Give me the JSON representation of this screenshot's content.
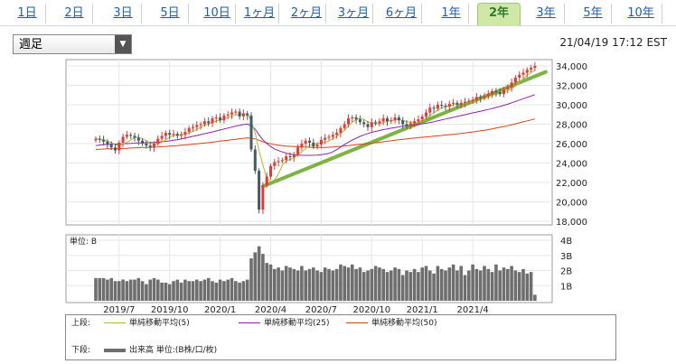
{
  "tabs": [
    {
      "label": "1日",
      "active": false
    },
    {
      "label": "2日",
      "active": false
    },
    {
      "label": "3日",
      "active": false
    },
    {
      "label": "5日",
      "active": false
    },
    {
      "label": "10日",
      "active": false
    },
    {
      "label": "1ヶ月",
      "active": false
    },
    {
      "label": "2ヶ月",
      "active": false
    },
    {
      "label": "3ヶ月",
      "active": false
    },
    {
      "label": "6ヶ月",
      "active": false
    },
    {
      "label": "1年",
      "active": false
    },
    {
      "label": "2年",
      "active": true
    },
    {
      "label": "3年",
      "active": false
    },
    {
      "label": "5年",
      "active": false
    },
    {
      "label": "10年",
      "active": false
    }
  ],
  "period_select": {
    "value": "週足"
  },
  "timestamp": "21/04/19 17:12 EST",
  "colors": {
    "up": "#e53935",
    "down": "#455a64",
    "ma5": "#a8bd32",
    "ma25": "#8e24aa",
    "ma50": "#d84315",
    "trend": "#7cb342",
    "volume": "#6e6e6e"
  },
  "legend": {
    "upper_label": "上段:",
    "lower_label": "下段:",
    "ma5": "単純移動平均(5)",
    "ma25": "単純移動平均(25)",
    "ma50": "単純移動平均(50)",
    "volume": "出来高 単位:(B株/口/枚)"
  },
  "chart_data": [
    {
      "type": "candlestick",
      "x_ticks": [
        "2019/7",
        "2019/10",
        "2020/1",
        "2020/4",
        "2020/7",
        "2020/10",
        "2021/1",
        "2021/4"
      ],
      "y_ticks": [
        "34,000",
        "32,000",
        "30,000",
        "28,000",
        "26,000",
        "24,000",
        "22,000",
        "20,000",
        "18,000"
      ],
      "ylim": [
        18000,
        34000
      ],
      "close": [
        26500,
        26400,
        26200,
        25900,
        25600,
        25300,
        26100,
        26700,
        26900,
        26800,
        26600,
        26300,
        26000,
        25800,
        25600,
        26000,
        26500,
        26800,
        27100,
        26900,
        27000,
        26800,
        26900,
        27200,
        27600,
        27700,
        27900,
        28000,
        28300,
        28100,
        28600,
        28700,
        28400,
        28900,
        29000,
        29200,
        29300,
        28800,
        29100,
        28900,
        25400,
        23200,
        19200,
        21700,
        22600,
        23700,
        24100,
        24200,
        24300,
        24700,
        24600,
        24900,
        25600,
        26000,
        26300,
        26100,
        25700,
        25900,
        26400,
        26600,
        26700,
        26900,
        27100,
        27600,
        28000,
        28600,
        28700,
        28500,
        28200,
        28000,
        27700,
        28200,
        28100,
        28300,
        28600,
        28300,
        28400,
        28700,
        28400,
        28000,
        27800,
        28100,
        28300,
        28500,
        28800,
        29200,
        29700,
        29600,
        30000,
        29900,
        29800,
        30100,
        30200,
        30000,
        30200,
        30300,
        30400,
        30500,
        30800,
        30700,
        30900,
        31100,
        31400,
        31300,
        31100,
        31600,
        31800,
        32300,
        32800,
        33100,
        33300,
        33600,
        33800,
        34000
      ],
      "ma5": [
        26500,
        26450,
        26370,
        26250,
        26120,
        25880,
        25820,
        25960,
        26120,
        26360,
        26620,
        26660,
        26520,
        26300,
        26060,
        25940,
        25980,
        26140,
        26400,
        26660,
        26860,
        26920,
        26940,
        26960,
        27100,
        27240,
        27460,
        27680,
        27900,
        28000,
        28180,
        28340,
        28420,
        28540,
        28720,
        28840,
        28960,
        28980,
        29080,
        29060,
        28300,
        27100,
        25280,
        23800,
        22420,
        22080,
        22260,
        22860,
        23780,
        24200,
        24380,
        24540,
        24820,
        25160,
        25480,
        25780,
        25940,
        26000,
        26080,
        26140,
        26280,
        26500,
        26740,
        27060,
        27380,
        27800,
        28200,
        28480,
        28600,
        28500,
        28220,
        28120,
        28040,
        28060,
        28180,
        28300,
        28340,
        28460,
        28480,
        28360,
        28260,
        28200,
        28120,
        28140,
        28300,
        28580,
        28900,
        29160,
        29460,
        29680,
        29800,
        29880,
        30000,
        30000,
        30060,
        30160,
        30220,
        30280,
        30440,
        30540,
        30660,
        30800,
        30980,
        31080,
        31160,
        31300,
        31440,
        31620,
        31920,
        32320,
        32660,
        33020,
        33320,
        33560
      ],
      "ma25": [
        25800,
        25850,
        25900,
        25920,
        25940,
        25940,
        25950,
        25980,
        26000,
        26020,
        26050,
        26080,
        26080,
        26090,
        26100,
        26120,
        26150,
        26190,
        26230,
        26280,
        26340,
        26400,
        26480,
        26570,
        26660,
        26750,
        26840,
        26930,
        27020,
        27110,
        27200,
        27300,
        27400,
        27500,
        27600,
        27700,
        27800,
        27880,
        27960,
        28010,
        27850,
        27500,
        26900,
        26400,
        26000,
        25700,
        25450,
        25280,
        25140,
        25020,
        24920,
        24860,
        24820,
        24800,
        24790,
        24790,
        24800,
        24820,
        24860,
        24920,
        25000,
        25150,
        25380,
        25650,
        25920,
        26150,
        26360,
        26560,
        26740,
        26900,
        27040,
        27160,
        27260,
        27350,
        27440,
        27520,
        27590,
        27660,
        27730,
        27790,
        27840,
        27890,
        27940,
        27990,
        28040,
        28100,
        28180,
        28260,
        28350,
        28440,
        28530,
        28620,
        28710,
        28800,
        28890,
        28980,
        29070,
        29160,
        29250,
        29340,
        29430,
        29520,
        29620,
        29720,
        29820,
        29940,
        30060,
        30200,
        30340,
        30480,
        30620,
        30760,
        30900,
        31040
      ],
      "ma50": [
        25400,
        25420,
        25440,
        25450,
        25460,
        25470,
        25480,
        25500,
        25520,
        25540,
        25560,
        25580,
        25600,
        25610,
        25620,
        25640,
        25660,
        25680,
        25710,
        25740,
        25770,
        25800,
        25830,
        25860,
        25900,
        25940,
        25980,
        26020,
        26060,
        26100,
        26150,
        26200,
        26250,
        26300,
        26350,
        26400,
        26450,
        26500,
        26550,
        26590,
        26560,
        26480,
        26340,
        26200,
        26080,
        25980,
        25900,
        25840,
        25790,
        25750,
        25720,
        25700,
        25680,
        25660,
        25640,
        25620,
        25610,
        25600,
        25600,
        25610,
        25630,
        25660,
        25690,
        25720,
        25760,
        25800,
        25840,
        25880,
        25920,
        25960,
        26000,
        26040,
        26090,
        26140,
        26190,
        26240,
        26290,
        26340,
        26390,
        26440,
        26490,
        26530,
        26570,
        26610,
        26650,
        26690,
        26730,
        26770,
        26800,
        26840,
        26880,
        26920,
        26960,
        27000,
        27050,
        27100,
        27150,
        27200,
        27260,
        27320,
        27380,
        27440,
        27520,
        27600,
        27680,
        27760,
        27840,
        27940,
        28040,
        28140,
        28240,
        28340,
        28440,
        28540
      ],
      "trend_line": {
        "from": {
          "x_index": 43,
          "y": 21600
        },
        "to": {
          "x_index": 113,
          "y": 33200
        }
      }
    },
    {
      "type": "bar",
      "series_name": "出来高",
      "unit": "B",
      "y_ticks": [
        "4B",
        "3B",
        "2B",
        "1B"
      ],
      "ylim": [
        0,
        4
      ],
      "values": [
        1.5,
        1.5,
        1.5,
        1.4,
        1.5,
        1.3,
        1.3,
        1.4,
        1.3,
        1.4,
        1.4,
        1.5,
        1.3,
        1.1,
        1.4,
        1.5,
        1.4,
        1.2,
        1.2,
        1.1,
        1.3,
        1.4,
        1.2,
        1.4,
        1.3,
        1.3,
        1.4,
        1.3,
        1.4,
        1.5,
        1.3,
        1.2,
        1.4,
        1.3,
        1.4,
        1.5,
        1.3,
        1.2,
        1.3,
        1.4,
        2.8,
        3.2,
        3.6,
        3.1,
        2.5,
        2.4,
        2.1,
        2.2,
        2.0,
        2.3,
        2.2,
        2.1,
        2.0,
        2.3,
        2.0,
        2.1,
        2.2,
        2.0,
        1.9,
        2.2,
        2.1,
        2.0,
        2.1,
        2.4,
        2.3,
        2.2,
        2.4,
        2.1,
        2.2,
        1.9,
        2.0,
        2.1,
        2.3,
        2.2,
        2.1,
        1.9,
        2.0,
        2.2,
        2.1,
        1.7,
        2.0,
        1.9,
        2.1,
        1.9,
        2.2,
        2.3,
        2.0,
        1.8,
        2.3,
        2.1,
        2.0,
        2.2,
        2.4,
        2.0,
        2.3,
        1.7,
        2.0,
        2.4,
        2.1,
        2.0,
        2.3,
        2.1,
        1.9,
        2.4,
        2.0,
        2.2,
        2.1,
        2.3,
        2.0,
        1.9,
        2.1,
        1.8,
        1.9,
        0.4
      ]
    }
  ]
}
